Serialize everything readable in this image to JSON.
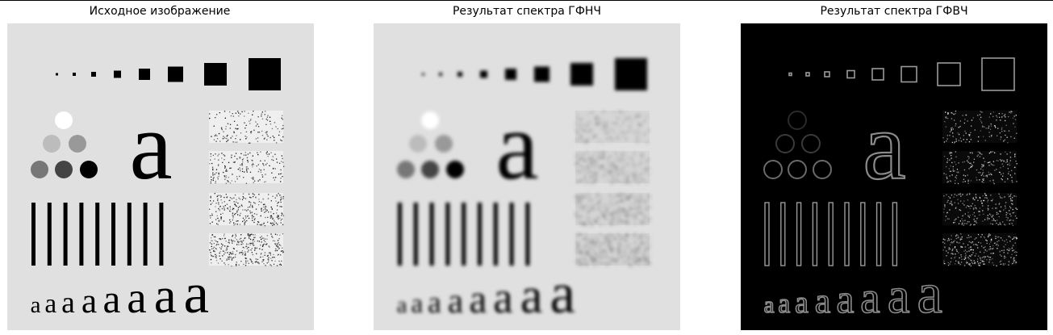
{
  "panels": [
    {
      "title": "Исходное изображение",
      "style": "original"
    },
    {
      "title": "Результат спектра ГФНЧ",
      "style": "lowpass"
    },
    {
      "title": "Результат спектра ГФВЧ",
      "style": "highpass"
    }
  ],
  "glyph": "a",
  "colors": {
    "page_background": "#ffffff",
    "image_background_light": "#e0e0e0",
    "image_background_dark": "#000000",
    "shape_dark": "#000000"
  }
}
